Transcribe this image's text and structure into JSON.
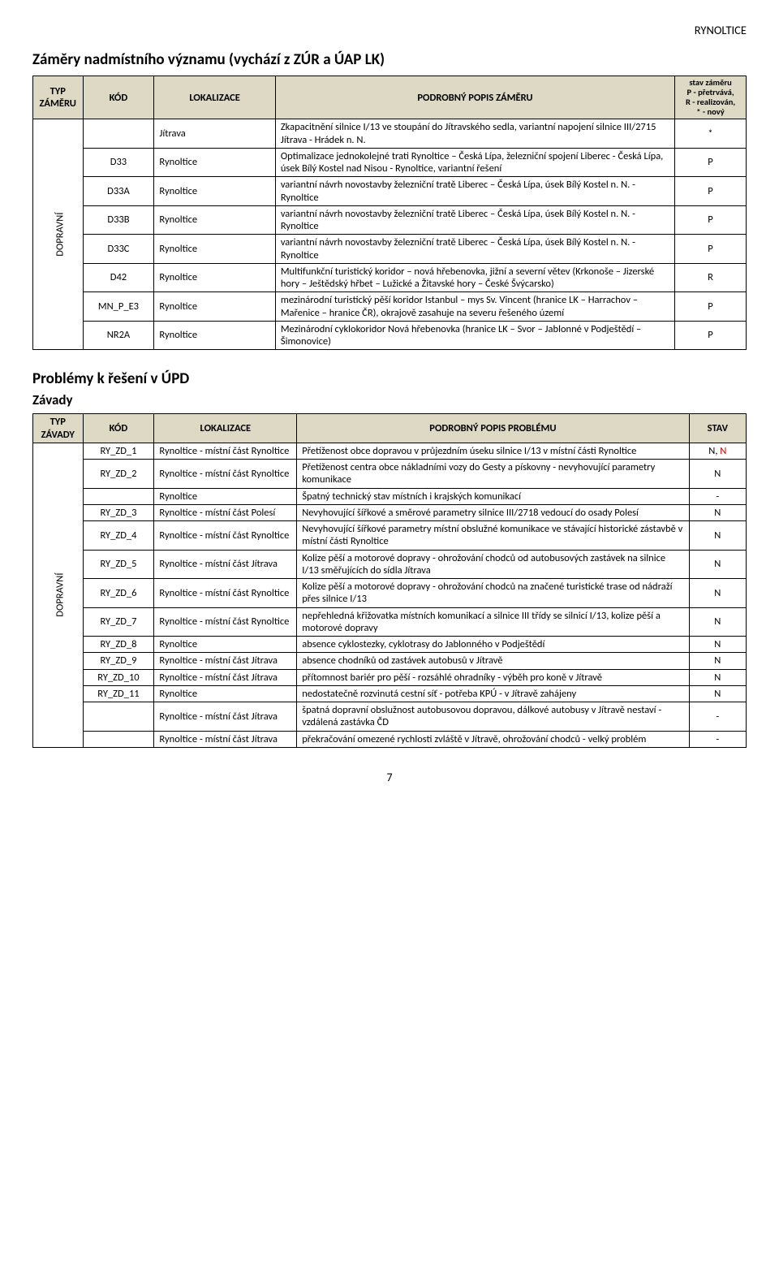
{
  "page_header": "RYNOLTICE",
  "page_number": "7",
  "section1": {
    "title": "Záměry nadmístního významu (vychází z ZÚR a ÚAP LK)",
    "headers": {
      "typ": "TYP ZÁMĚRU",
      "kod": "KÓD",
      "lok": "LOKALIZACE",
      "popis": "PODROBNÝ POPIS ZÁMĚRU",
      "stav_l1": "stav záměru",
      "stav_l2": "P - přetrvává,",
      "stav_l3": "R - realizován,",
      "stav_l4": "*  - nový"
    },
    "typ_label": "DOPRAVNÍ",
    "rows": [
      {
        "kod": "",
        "lok": "Jítrava",
        "popis": "Zkapacitnění silnice I/13 ve stoupání do Jítravského sedla, variantní napojení silnice III/2715 Jítrava - Hrádek n. N.",
        "stav": "*"
      },
      {
        "kod": "D33",
        "lok": "Rynoltice",
        "popis": "Optimalizace jednokolejné trati Rynoltice – Česká Lípa, železniční spojení Liberec - Česká Lípa, úsek Bílý Kostel nad Nisou - Rynoltice, variantní řešení",
        "stav": "P"
      },
      {
        "kod": "D33A",
        "lok": "Rynoltice",
        "popis": "variantní návrh novostavby železniční tratě Liberec – Česká Lípa, úsek Bílý Kostel n. N. - Rynoltice",
        "stav": "P"
      },
      {
        "kod": "D33B",
        "lok": "Rynoltice",
        "popis": "variantní návrh novostavby železniční tratě Liberec – Česká Lípa, úsek Bílý Kostel n. N. - Rynoltice",
        "stav": "P"
      },
      {
        "kod": "D33C",
        "lok": "Rynoltice",
        "popis": "variantní návrh novostavby železniční tratě Liberec – Česká Lípa, úsek Bílý Kostel n. N. - Rynoltice",
        "stav": "P"
      },
      {
        "kod": "D42",
        "lok": "Rynoltice",
        "popis": "Multifunkční turistický koridor – nová hřebenovka, jižní a severní větev (Krkonoše – Jizerské hory – Ještědský hřbet – Lužické a Žitavské hory – České Švýcarsko)",
        "stav": "R"
      },
      {
        "kod": "MN_P_E3",
        "lok": "Rynoltice",
        "popis": "mezinárodní turistický pěší koridor Istanbul – mys Sv. Vincent (hranice LK – Harrachov – Mařenice – hranice ČR), okrajově zasahuje na severu řešeného území",
        "stav": "P"
      },
      {
        "kod": "NR2A",
        "lok": "Rynoltice",
        "popis": "Mezinárodní cyklokoridor Nová hřebenovka (hranice LK – Svor – Jablonné v Podještědí – Šimonovice)",
        "stav": "P"
      }
    ]
  },
  "section2": {
    "title": "Problémy k řešení v ÚPD",
    "subtitle": "Závady",
    "headers": {
      "typ": "TYP ZÁVADY",
      "kod": "KÓD",
      "lok": "LOKALIZACE",
      "popis": "PODROBNÝ POPIS PROBLÉMU",
      "stav": "STAV"
    },
    "typ_label": "DOPRAVNÍ",
    "rows": [
      {
        "kod": "RY_ZD_1",
        "lok": "Rynoltice - místní část Rynoltice",
        "popis": "Přetíženost obce dopravou v průjezdním úseku silnice I/13 v místní části Rynoltice",
        "stav": "N, ",
        "stav_red": "N"
      },
      {
        "kod": "RY_ZD_2",
        "lok": "Rynoltice - místní část Rynoltice",
        "popis": "Přetíženost centra obce nákladními vozy do Gesty a pískovny - nevyhovující parametry komunikace",
        "stav": "N"
      },
      {
        "kod": "",
        "lok": "Rynoltice",
        "popis": "Špatný technický stav místních i krajských komunikací",
        "stav": "-"
      },
      {
        "kod": "RY_ZD_3",
        "lok": "Rynoltice - místní část Polesí",
        "popis": "Nevyhovující šířkové a směrové parametry silnice III/2718 vedoucí do osady Polesí",
        "stav": "N"
      },
      {
        "kod": "RY_ZD_4",
        "lok": "Rynoltice - místní část Rynoltice",
        "popis": "Nevyhovující šířkové parametry místní obslužné komunikace ve stávající historické zástavbě v místní části Rynoltice",
        "stav": "N"
      },
      {
        "kod": "RY_ZD_5",
        "lok": "Rynoltice - místní část Jítrava",
        "popis": "Kolize pěší a motorové dopravy - ohrožování chodců od autobusových zastávek na silnice I/13 směřujících do sídla Jítrava",
        "stav": "N"
      },
      {
        "kod": "RY_ZD_6",
        "lok": "Rynoltice - místní část Rynoltice",
        "popis": "Kolize pěší a motorové dopravy - ohrožování chodců na značené turistické trase od nádraží přes silnice I/13",
        "stav": "N"
      },
      {
        "kod": "RY_ZD_7",
        "lok": "Rynoltice - místní část Rynoltice",
        "popis": "nepřehledná křižovatka místních komunikací a silnice III třídy se silnicí I/13, kolize pěší a motorové dopravy",
        "stav": "N"
      },
      {
        "kod": "RY_ZD_8",
        "lok": "Rynoltice",
        "popis": "absence cyklostezky, cyklotrasy do Jablonného v Podještědí",
        "stav": "N"
      },
      {
        "kod": "RY_ZD_9",
        "lok": "Rynoltice - místní část Jítrava",
        "popis": "absence chodníků od zastávek autobusů v Jítravě",
        "stav": "N"
      },
      {
        "kod": "RY_ZD_10",
        "lok": "Rynoltice - místní část Jítrava",
        "popis": "přítomnost bariér pro pěší - rozsáhlé ohradníky - výběh pro koně v Jítravě",
        "stav": "N"
      },
      {
        "kod": "RY_ZD_11",
        "lok": "Rynoltice",
        "popis": "nedostatečně rozvinutá cestní síť - potřeba KPÚ - v Jítravě zahájeny",
        "stav": "N"
      },
      {
        "kod": "",
        "lok": "Rynoltice - místní část Jítrava",
        "popis": "špatná dopravní obslužnost autobusovou dopravou, dálkové autobusy v Jítravě nestaví - vzdálená zastávka ČD",
        "stav": "-"
      },
      {
        "kod": "",
        "lok": "Rynoltice - místní část Jítrava",
        "popis": "překračování omezené rychlosti zvláště v Jítravě, ohrožování chodců  - velký problém",
        "stav": "-"
      }
    ]
  }
}
